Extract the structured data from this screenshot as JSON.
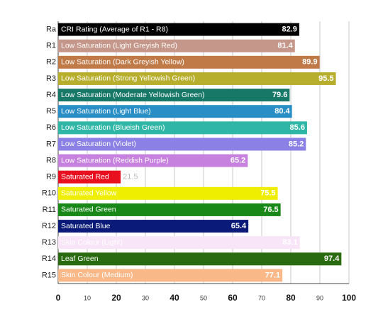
{
  "chart_data": {
    "type": "hbar",
    "categories": [
      "Ra",
      "R1",
      "R2",
      "R3",
      "R4",
      "R5",
      "R6",
      "R7",
      "R8",
      "R9",
      "R10",
      "R11",
      "R12",
      "R13",
      "R14",
      "R15"
    ],
    "descriptions": [
      "CRI Rating (Average of R1 - R8)",
      "Low Saturation (Light Greyish Red)",
      "Low Saturation (Dark Greyish Yellow)",
      "Low Saturation (Strong Yellowish Green)",
      "Low Saturation (Moderate Yellowish Green)",
      "Low Saturation (Light Blue)",
      "Low Saturation (Blueish Green)",
      "Low Saturation (Violet)",
      "Low Saturation (Reddish Purple)",
      "Saturated Red",
      "Saturated Yellow",
      "Saturated Green",
      "Saturated Blue",
      "Skin Colour (Light)",
      "Leaf Green",
      "Skin Colour (Medium)"
    ],
    "values": [
      82.9,
      81.4,
      89.9,
      95.5,
      79.6,
      80.4,
      85.6,
      85.2,
      65.2,
      21.5,
      75.5,
      76.5,
      65.4,
      83.1,
      97.4,
      77.1
    ],
    "colors": [
      "#000000",
      "#c5968a",
      "#bf7a48",
      "#b8ae2e",
      "#177868",
      "#2a8ec6",
      "#2fb6a6",
      "#8a80e6",
      "#c680de",
      "#e8101e",
      "#f0ee00",
      "#188818",
      "#0a1a78",
      "#f8e6f8",
      "#2a6a10",
      "#f8b888"
    ],
    "xlim": [
      0,
      100
    ],
    "xticks": [
      0,
      10,
      20,
      30,
      40,
      50,
      60,
      70,
      80,
      90,
      100
    ],
    "grid": true
  }
}
